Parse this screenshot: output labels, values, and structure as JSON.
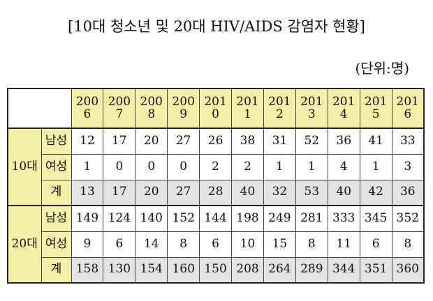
{
  "title": "[10대 청소년 및 20대  HIV/AIDS 감염자 현황]",
  "unit": "(단위:명)",
  "years": [
    {
      "top": "200",
      "bottom": "6"
    },
    {
      "top": "200",
      "bottom": "7"
    },
    {
      "top": "200",
      "bottom": "8"
    },
    {
      "top": "200",
      "bottom": "9"
    },
    {
      "top": "201",
      "bottom": "0"
    },
    {
      "top": "201",
      "bottom": "1"
    },
    {
      "top": "201",
      "bottom": "2"
    },
    {
      "top": "201",
      "bottom": "3"
    },
    {
      "top": "201",
      "bottom": "4"
    },
    {
      "top": "201",
      "bottom": "5"
    },
    {
      "top": "201",
      "bottom": "6"
    }
  ],
  "groups": [
    {
      "label": "10대",
      "rows": [
        {
          "label": "남성",
          "values": [
            "12",
            "17",
            "20",
            "27",
            "26",
            "38",
            "31",
            "52",
            "36",
            "41",
            "33"
          ]
        },
        {
          "label": "여성",
          "values": [
            "1",
            "0",
            "0",
            "0",
            "2",
            "2",
            "1",
            "1",
            "4",
            "1",
            "3"
          ]
        },
        {
          "label": "계",
          "values": [
            "13",
            "17",
            "20",
            "27",
            "28",
            "40",
            "32",
            "53",
            "40",
            "42",
            "36"
          ]
        }
      ]
    },
    {
      "label": "20대",
      "rows": [
        {
          "label": "남성",
          "values": [
            "149",
            "124",
            "140",
            "152",
            "144",
            "198",
            "249",
            "281",
            "333",
            "345",
            "352"
          ]
        },
        {
          "label": "여성",
          "values": [
            "9",
            "6",
            "14",
            "8",
            "6",
            "10",
            "15",
            "8",
            "11",
            "6",
            "8"
          ]
        },
        {
          "label": "계",
          "values": [
            "158",
            "130",
            "154",
            "160",
            "150",
            "208",
            "264",
            "289",
            "344",
            "351",
            "360"
          ]
        }
      ]
    }
  ]
}
